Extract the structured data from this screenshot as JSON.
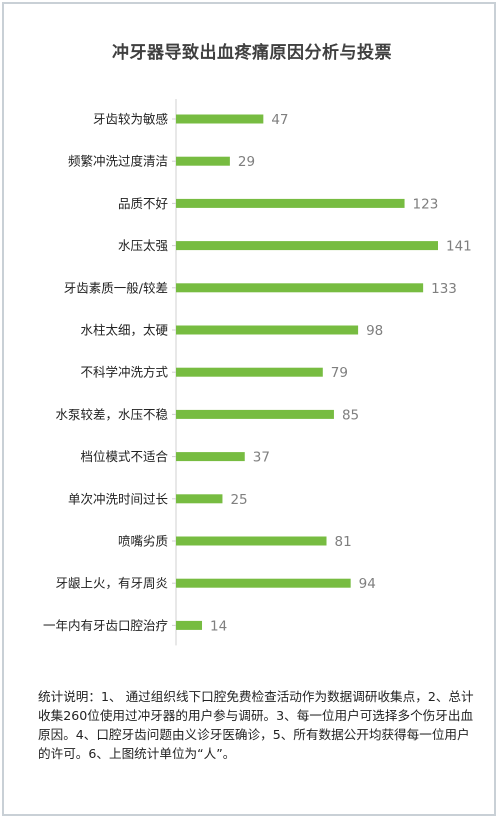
{
  "chart_data": {
    "type": "bar",
    "orientation": "horizontal",
    "title": "冲牙器导致出血疼痛原因分析与投票",
    "categories": [
      "牙齿较为敏感",
      "频繁冲洗过度清洁",
      "品质不好",
      "水压太强",
      "牙齿素质一般/较差",
      "水柱太细，太硬",
      "不科学冲洗方式",
      "水泵较差，水压不稳",
      "档位模式不适合",
      "单次冲洗时间过长",
      "喷嘴劣质",
      "牙龈上火，有牙周炎",
      "一年内有牙齿口腔治疗"
    ],
    "values": [
      47,
      29,
      123,
      141,
      133,
      98,
      79,
      85,
      37,
      25,
      81,
      94,
      14
    ],
    "xlim": [
      0,
      141
    ],
    "grid": false,
    "bar_color": "#77bc41",
    "label_color": "#7f7f7f"
  },
  "note": "统计说明：1、 通过组织线下口腔免费检查活动作为数据调研收集点，2、总计收集260位使用过冲牙器的用户参与调研。3、每一位用户可选择多个伤牙出血原因。4、口腔牙齿问题由义诊牙医确诊，5、所有数据公开均获得每一位用户的许可。6、上图统计单位为“人”。"
}
